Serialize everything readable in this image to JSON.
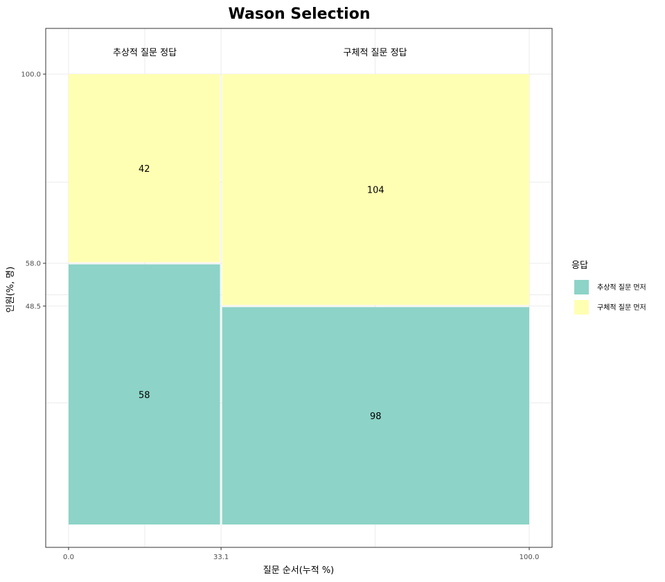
{
  "chart_data": {
    "type": "mosaic",
    "title": "Wason Selection",
    "xlabel": "질문 순서(누적 %)",
    "ylabel": "인원(%, 명)",
    "x_ticks": [
      "0.0",
      "33.1",
      "100.0"
    ],
    "y_ticks": [
      "100.0",
      "58.0",
      "48.5"
    ],
    "columns": [
      {
        "label": "추상적 질문 정답",
        "x_start": 0.0,
        "x_end": 33.1,
        "segments": [
          {
            "series": "추상적 질문 먼저",
            "count": 58,
            "count_label": "58",
            "y_start": 0.0,
            "y_end": 58.0
          },
          {
            "series": "구체적 질문 먼저",
            "count": 42,
            "count_label": "42",
            "y_start": 58.0,
            "y_end": 100.0
          }
        ]
      },
      {
        "label": "구체적 질문 정답",
        "x_start": 33.1,
        "x_end": 100.0,
        "segments": [
          {
            "series": "추상적 질문 먼저",
            "count": 98,
            "count_label": "98",
            "y_start": 0.0,
            "y_end": 48.5
          },
          {
            "series": "구체적 질문 먼저",
            "count": 104,
            "count_label": "104",
            "y_start": 48.5,
            "y_end": 100.0
          }
        ]
      }
    ],
    "legend": {
      "title": "응답",
      "position": "right",
      "items": [
        {
          "label": "추상적 질문 먼저",
          "color": "#8dd3c7"
        },
        {
          "label": "구체적 질문 먼저",
          "color": "#ffffb3"
        }
      ]
    },
    "xlim": [
      0,
      100
    ],
    "ylim": [
      0,
      100
    ],
    "grid": true
  }
}
